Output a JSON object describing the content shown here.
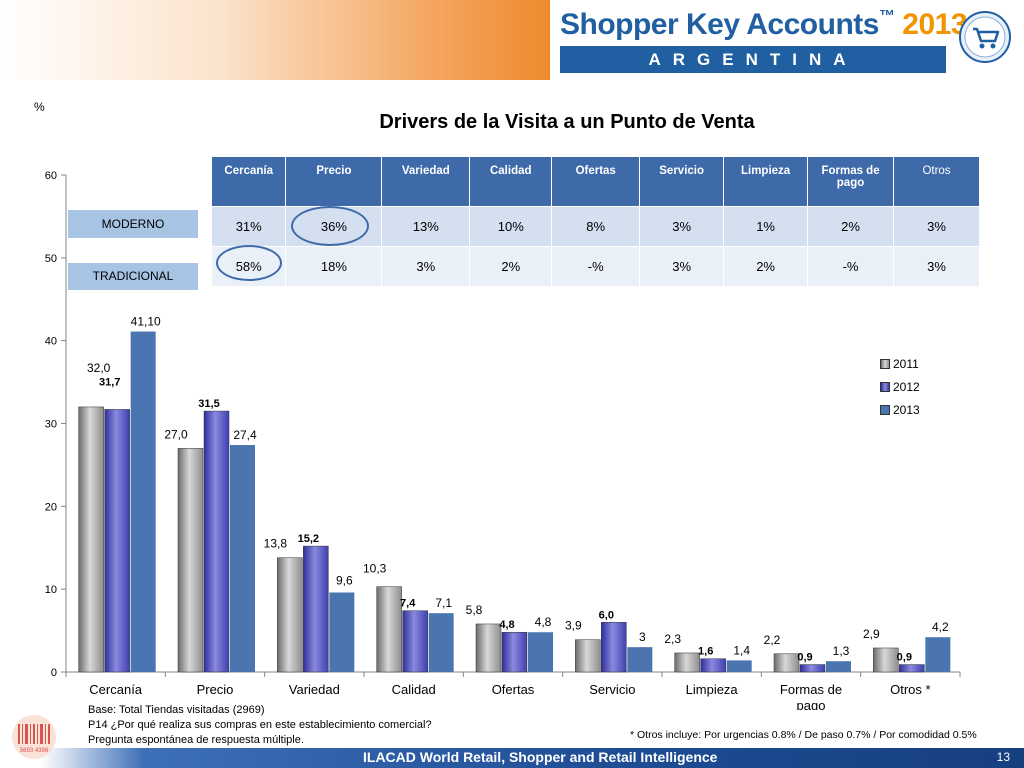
{
  "header": {
    "brand_title": "Shopper Key Accounts",
    "brand_tm": "™",
    "brand_year": "2013",
    "country": "ARGENTINA",
    "accent_color": "#1f5fa2",
    "year_color": "#f29400",
    "emblem_icon": "shopping-cart-icon"
  },
  "page": {
    "percent_label": "%",
    "title": "Drivers de la Visita a un Punto de Venta"
  },
  "table": {
    "headers": [
      "Cercanía",
      "Precio",
      "Variedad",
      "Calidad",
      "Ofertas",
      "Servicio",
      "Limpieza",
      "Formas de pago",
      "Otros"
    ],
    "rows": [
      {
        "channel": "MODERNO",
        "values": [
          "31%",
          "36%",
          "13%",
          "10%",
          "8%",
          "3%",
          "1%",
          "2%",
          "3%"
        ]
      },
      {
        "channel": "TRADICIONAL",
        "values": [
          "58%",
          "18%",
          "3%",
          "2%",
          "-%",
          "3%",
          "2%",
          "-%",
          "3%"
        ]
      }
    ]
  },
  "chart_data": {
    "type": "bar",
    "categories": [
      "Cercanía",
      "Precio",
      "Variedad",
      "Calidad",
      "Ofertas",
      "Servicio",
      "Limpieza",
      "Formas de pago",
      "Otros *"
    ],
    "series": [
      {
        "name": "2011",
        "values": [
          32.0,
          27.0,
          13.8,
          10.3,
          5.8,
          3.9,
          2.3,
          2.2,
          2.9
        ],
        "labels": [
          "32,0",
          "27,0",
          "13,8",
          "10,3",
          "5,8",
          "3,9",
          "2,3",
          "2,2",
          "2,9"
        ],
        "color": "#a3a3a3"
      },
      {
        "name": "2012",
        "values": [
          31.7,
          31.5,
          15.2,
          7.4,
          4.8,
          6.0,
          1.6,
          0.9,
          0.9
        ],
        "labels": [
          "31,7",
          "31,5",
          "15,2",
          "7,4",
          "4,8",
          "6,0",
          "1,6",
          "0,9",
          "0,9"
        ],
        "color": "#4848b8"
      },
      {
        "name": "2013",
        "values": [
          41.1,
          27.4,
          9.6,
          7.1,
          4.8,
          3.0,
          1.4,
          1.3,
          4.2
        ],
        "labels": [
          "41,10",
          "27,4",
          "9,6",
          "7,1",
          "4,8",
          "3",
          "1,4",
          "1,3",
          "4,2"
        ],
        "color": "#4a75b0"
      }
    ],
    "ylim": [
      0,
      60
    ],
    "yticks": [
      0,
      10,
      20,
      30,
      40,
      50,
      60
    ],
    "legend_position": "right",
    "grid": false
  },
  "notes": {
    "base": "Base: Total Tiendas visitadas  (2969)",
    "question": "P14 ¿Por qué realiza sus compras en este establecimiento comercial?",
    "answer_type": "Pregunta espontánea de respuesta múltiple.",
    "otros": "* Otros incluye: Por urgencias  0.8% / De paso  0.7% / Por comodidad 0.5%"
  },
  "footer": {
    "text": "ILACAD World Retail, Shopper and Retail Intelligence",
    "page_number": "13",
    "badge_text": "5693 4396"
  }
}
